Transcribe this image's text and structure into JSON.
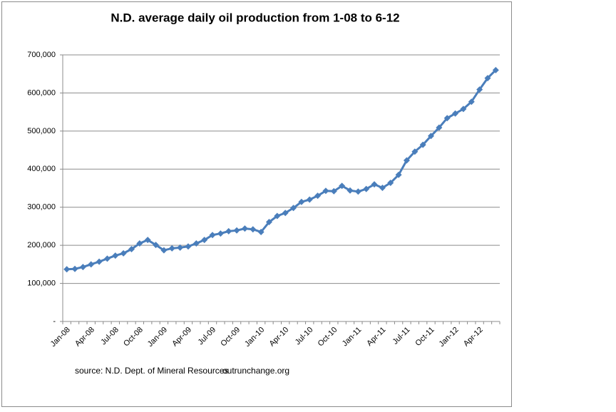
{
  "chart_data": {
    "type": "line",
    "title": "N.D. average daily oil production from 1-08 to 6-12",
    "annotations": [
      "source: N.D. Dept. of Mineral Resources",
      "outrunchange.org"
    ],
    "categories": [
      "Jan-08",
      null,
      null,
      "Apr-08",
      null,
      null,
      "Jul-08",
      null,
      null,
      "Oct-08",
      null,
      null,
      "Jan-09",
      null,
      null,
      "Apr-09",
      null,
      null,
      "Jul-09",
      null,
      null,
      "Oct-09",
      null,
      null,
      "Jan-10",
      null,
      null,
      "Apr-10",
      null,
      null,
      "Jul-10",
      null,
      null,
      "Oct-10",
      null,
      null,
      "Jan-11",
      null,
      null,
      "Apr-11",
      null,
      null,
      "Jul-11",
      null,
      null,
      "Oct-11",
      null,
      null,
      "Jan-12",
      null,
      null,
      "Apr-12",
      null,
      null
    ],
    "values": [
      137000,
      138000,
      143000,
      150000,
      157000,
      165000,
      173000,
      179000,
      190000,
      205000,
      214000,
      201000,
      187000,
      192000,
      194000,
      197000,
      205000,
      214000,
      227000,
      231000,
      237000,
      239000,
      244000,
      242000,
      235000,
      261000,
      277000,
      285000,
      298000,
      314000,
      320000,
      330000,
      343000,
      342000,
      356000,
      344000,
      341000,
      348000,
      360000,
      351000,
      364000,
      385000,
      423000,
      446000,
      464000,
      487000,
      509000,
      534000,
      546000,
      558000,
      577000,
      609000,
      639000,
      660000
    ],
    "color": "#4a7ebb",
    "ylim": [
      0,
      700000
    ],
    "yticks": [
      {
        "value": 0,
        "label": "-"
      },
      {
        "value": 100000,
        "label": "100,000"
      },
      {
        "value": 200000,
        "label": "200,000"
      },
      {
        "value": 300000,
        "label": "300,000"
      },
      {
        "value": 400000,
        "label": "400,000"
      },
      {
        "value": 500000,
        "label": "500,000"
      },
      {
        "value": 600000,
        "label": "600,000"
      },
      {
        "value": 700000,
        "label": "700,000"
      }
    ],
    "grid": true
  }
}
